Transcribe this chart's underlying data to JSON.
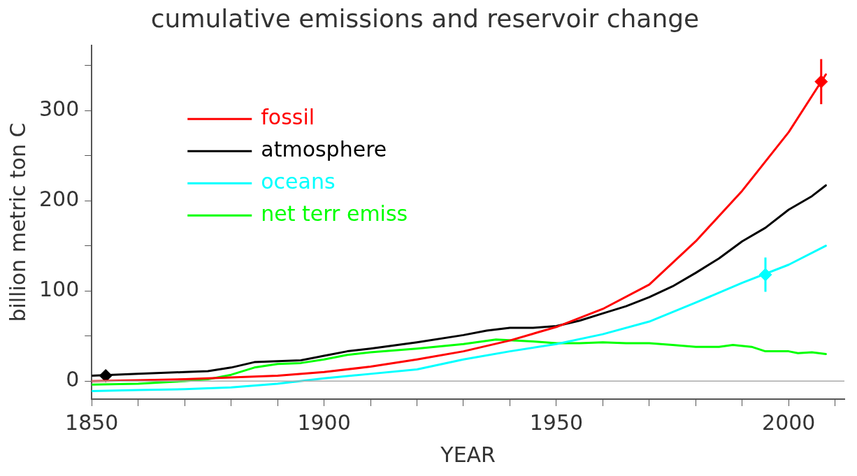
{
  "chart_data": {
    "type": "line",
    "title": "cumulative emissions and reservoir change",
    "xlabel": "YEAR",
    "ylabel": "billion metric ton C",
    "xlim": [
      1850,
      2012
    ],
    "ylim": [
      -20,
      372
    ],
    "xticks": [
      1850,
      {
        "value": 1860,
        "label": null
      },
      {
        "value": 1870,
        "label": null
      },
      {
        "value": 1880,
        "label": null
      },
      {
        "value": 1890,
        "label": null
      },
      1900,
      {
        "value": 1910,
        "label": null
      },
      {
        "value": 1920,
        "label": null
      },
      {
        "value": 1930,
        "label": null
      },
      {
        "value": 1940,
        "label": null
      },
      1950,
      {
        "value": 1960,
        "label": null
      },
      {
        "value": 1970,
        "label": null
      },
      {
        "value": 1980,
        "label": null
      },
      {
        "value": 1990,
        "label": null
      },
      2000,
      {
        "value": 2010,
        "label": null
      }
    ],
    "yticks": [
      0,
      {
        "value": 50,
        "label": null
      },
      100,
      {
        "value": 150,
        "label": null
      },
      200,
      {
        "value": 250,
        "label": null
      },
      300,
      {
        "value": 350,
        "label": null
      }
    ],
    "grid": false,
    "legend": "top left",
    "marker": "none",
    "line_style": "solid",
    "ref_lines": [
      {
        "axis": "y",
        "value": 0,
        "color": "#aaaaaa"
      }
    ],
    "series": [
      {
        "name": "fossil",
        "color": "#ff0000",
        "x": [
          1850,
          1860,
          1870,
          1880,
          1890,
          1900,
          1910,
          1920,
          1930,
          1940,
          1950,
          1960,
          1970,
          1980,
          1990,
          2000,
          2008
        ],
        "values": [
          0,
          1,
          2,
          4,
          6,
          10,
          16,
          24,
          33,
          45,
          60,
          80,
          107,
          155,
          211,
          276,
          340
        ]
      },
      {
        "name": "atmosphere",
        "color": "#000000",
        "x": [
          1850,
          1860,
          1870,
          1875,
          1880,
          1885,
          1890,
          1895,
          1900,
          1905,
          1910,
          1920,
          1930,
          1935,
          1940,
          1945,
          1950,
          1955,
          1960,
          1965,
          1970,
          1975,
          1980,
          1985,
          1990,
          1995,
          2000,
          2005,
          2008
        ],
        "values": [
          6,
          8,
          10,
          11,
          15,
          21,
          22,
          23,
          28,
          33,
          36,
          43,
          51,
          56,
          59,
          59,
          61,
          67,
          75,
          83,
          93,
          105,
          120,
          136,
          155,
          170,
          190,
          205,
          217
        ]
      },
      {
        "name": "oceans",
        "color": "#00ffff",
        "x": [
          1850,
          1860,
          1870,
          1880,
          1890,
          1900,
          1910,
          1920,
          1930,
          1940,
          1950,
          1960,
          1970,
          1980,
          1990,
          2000,
          2008
        ],
        "values": [
          -11,
          -10,
          -9,
          -7,
          -3,
          3,
          8,
          13,
          24,
          33,
          41,
          52,
          66,
          87,
          109,
          129,
          150
        ]
      },
      {
        "name": "net terr emiss",
        "color": "#00ff00",
        "x": [
          1850,
          1860,
          1870,
          1875,
          1880,
          1885,
          1890,
          1895,
          1900,
          1905,
          1910,
          1920,
          1930,
          1937,
          1945,
          1950,
          1955,
          1960,
          1965,
          1970,
          1975,
          1980,
          1985,
          1988,
          1992,
          1995,
          2000,
          2002,
          2005,
          2008
        ],
        "values": [
          -4,
          -3,
          0,
          2,
          7,
          15,
          19,
          20,
          24,
          29,
          32,
          36,
          41,
          46,
          44,
          42,
          42,
          43,
          42,
          42,
          40,
          38,
          38,
          40,
          38,
          33,
          33,
          31,
          32,
          30
        ]
      },
      {
        "type": "scatter",
        "color": "#000000",
        "marker": "diamond",
        "x": [
          1853
        ],
        "values": [
          6
        ]
      },
      {
        "type": "scatter",
        "color": "#ff0000",
        "marker": "diamond",
        "x": [
          2007
        ],
        "values": [
          332
        ],
        "errors": [
          [
            307,
            357
          ]
        ]
      },
      {
        "type": "scatter",
        "color": "#00ffff",
        "marker": "diamond",
        "x": [
          1995
        ],
        "values": [
          118
        ],
        "errors": [
          [
            99,
            137
          ]
        ]
      }
    ]
  }
}
